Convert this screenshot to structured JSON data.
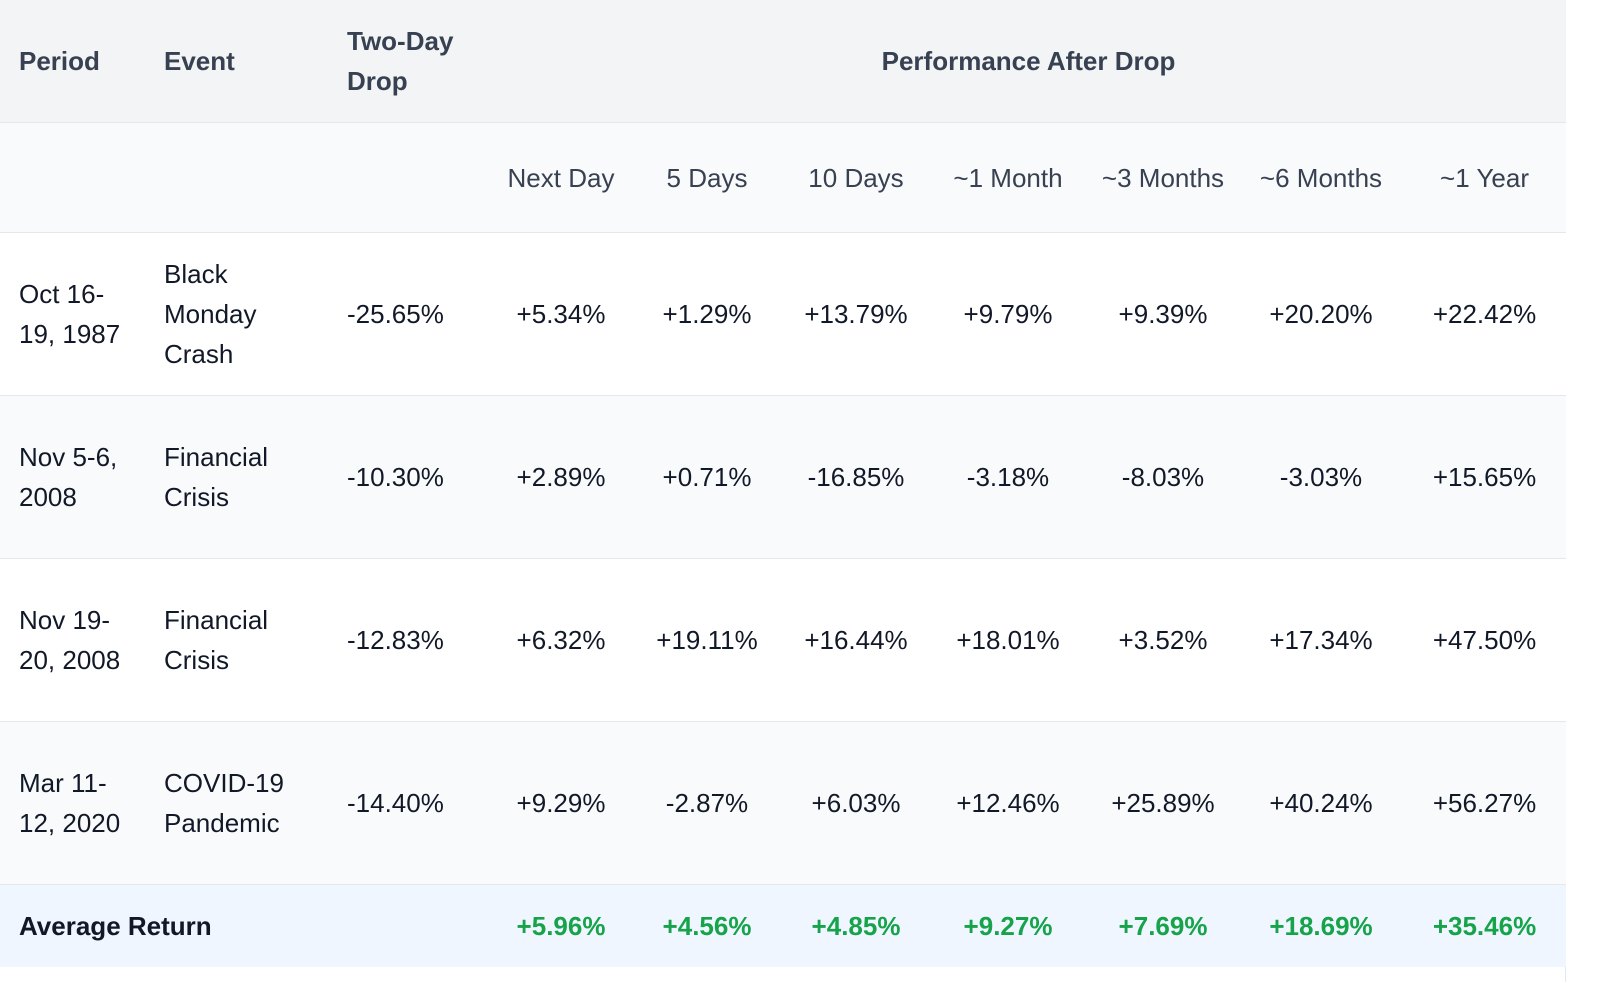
{
  "headers": {
    "period": "Period",
    "event": "Event",
    "drop": "Two-Day Drop",
    "performance": "Performance After Drop",
    "subcolumns": [
      "Next Day",
      "5 Days",
      "10 Days",
      "~1 Month",
      "~3 Months",
      "~6 Months",
      "~1 Year"
    ]
  },
  "rows": [
    {
      "period": "Oct 16-19, 1987",
      "event": "Black Monday Crash",
      "drop": "-25.65%",
      "values": [
        "+5.34%",
        "+1.29%",
        "+13.79%",
        "+9.79%",
        "+9.39%",
        "+20.20%",
        "+22.42%"
      ]
    },
    {
      "period": "Nov 5-6, 2008",
      "event": "Financial Crisis",
      "drop": "-10.30%",
      "values": [
        "+2.89%",
        "+0.71%",
        "-16.85%",
        "-3.18%",
        "-8.03%",
        "-3.03%",
        "+15.65%"
      ]
    },
    {
      "period": "Nov 19-20, 2008",
      "event": "Financial Crisis",
      "drop": "-12.83%",
      "values": [
        "+6.32%",
        "+19.11%",
        "+16.44%",
        "+18.01%",
        "+3.52%",
        "+17.34%",
        "+47.50%"
      ]
    },
    {
      "period": "Mar 11-12, 2020",
      "event": "COVID-19 Pandemic",
      "drop": "-14.40%",
      "values": [
        "+9.29%",
        "-2.87%",
        "+6.03%",
        "+12.46%",
        "+25.89%",
        "+40.24%",
        "+56.27%"
      ]
    }
  ],
  "footer": {
    "label": "Average Return",
    "values": [
      "+5.96%",
      "+4.56%",
      "+4.85%",
      "+9.27%",
      "+7.69%",
      "+18.69%",
      "+35.46%"
    ]
  },
  "colors": {
    "positive": "#16a34a",
    "negative": "#dc2626",
    "header_bg": "#f3f4f6",
    "footer_bg": "#eff6ff"
  }
}
